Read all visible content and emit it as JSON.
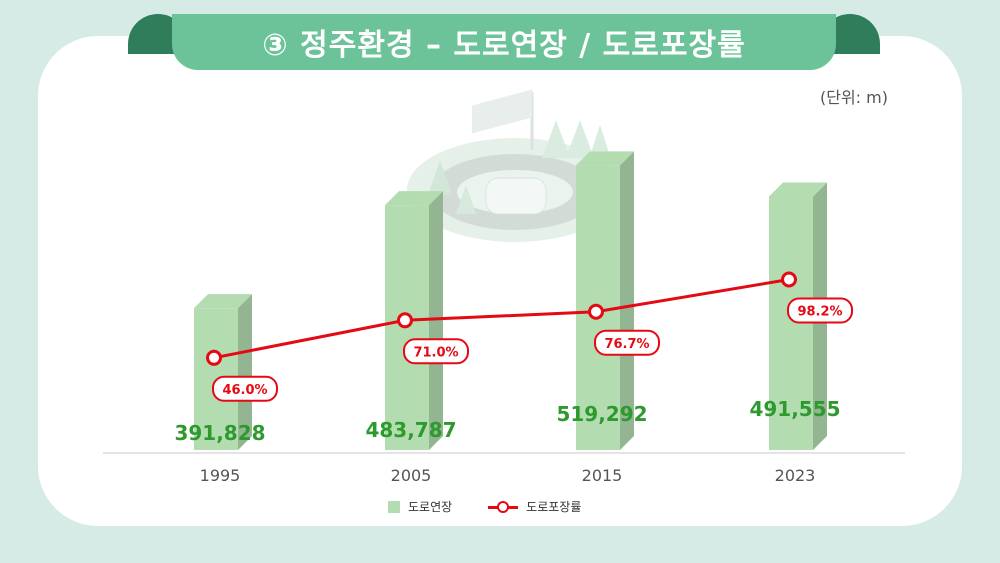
{
  "title": "③ 정주환경 – 도로연장 / 도로포장률",
  "unit_label": "(단위: m)",
  "chart_data": {
    "type": "bar",
    "categories": [
      "1995",
      "2005",
      "2015",
      "2023"
    ],
    "series": [
      {
        "name": "도로연장",
        "type": "bar",
        "values": [
          391828,
          483787,
          519292,
          491555
        ],
        "labels": [
          "391,828",
          "483,787",
          "519,292",
          "491,555"
        ],
        "color": "#b3ddb1"
      },
      {
        "name": "도로포장률",
        "type": "line",
        "values": [
          46.0,
          71.0,
          76.7,
          98.2
        ],
        "labels": [
          "46.0%",
          "71.0%",
          "76.7%",
          "98.2%"
        ],
        "color": "#e50914"
      }
    ],
    "legend_position": "bottom",
    "grid": false
  },
  "colors": {
    "background": "#d6ebe6",
    "banner": "#6cc39a",
    "banner_ear": "#2f7d5b",
    "bar": "#b3ddb1",
    "value_label": "#2e9a2e",
    "line": "#e50914"
  }
}
